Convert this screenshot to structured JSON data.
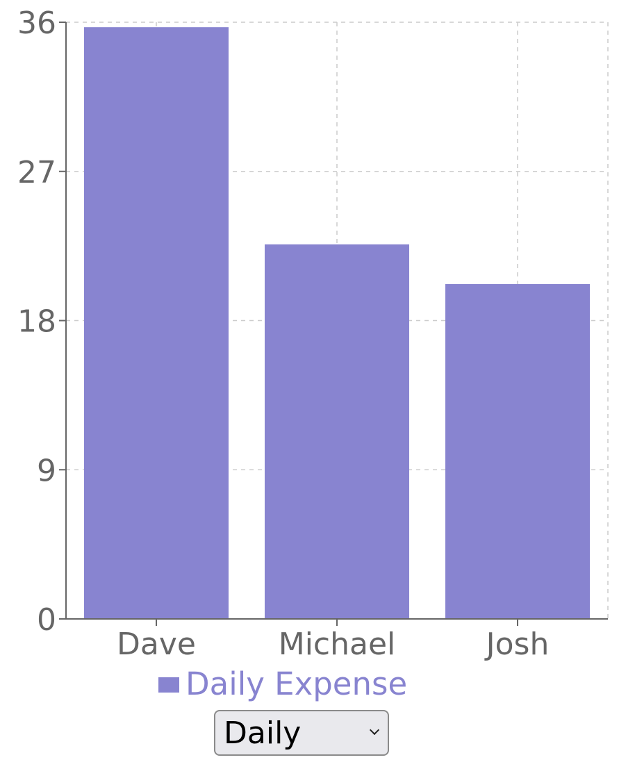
{
  "chart_data": {
    "type": "bar",
    "categories": [
      "Dave",
      "Michael",
      "Josh"
    ],
    "series": [
      {
        "name": "Daily Expense",
        "values": [
          35.7,
          22.6,
          20.2
        ]
      }
    ],
    "y_ticks": [
      "0",
      "9",
      "18",
      "27",
      "36"
    ],
    "ylim": [
      0,
      36
    ],
    "grid": true,
    "legend_position": "bottom",
    "bar_color": "#8884d0",
    "axis_color": "#666666",
    "grid_color": "#cccccc"
  },
  "legend": {
    "label": "Daily Expense"
  },
  "period_select": {
    "value": "Daily"
  }
}
